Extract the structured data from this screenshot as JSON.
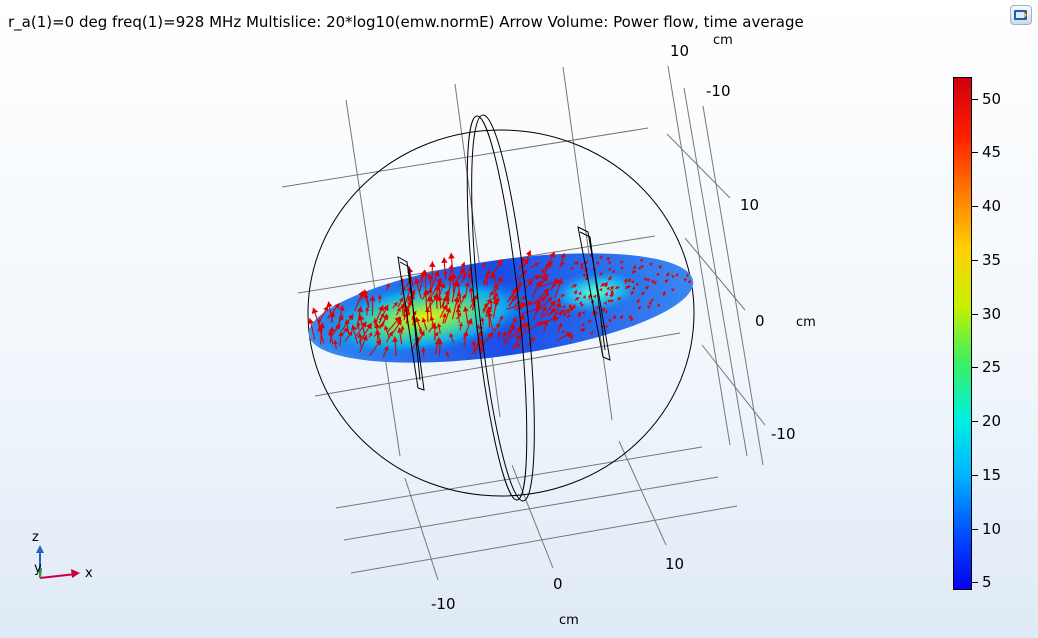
{
  "plot": {
    "title": "r_a(1)=0 deg freq(1)=928 MHz   Multislice: 20*log10(emw.normE)  Arrow Volume: Power flow, time average",
    "toolbar_icon": "display-icon"
  },
  "axes": {
    "z_ticks": [
      "10",
      "-10"
    ],
    "z_unit": "cm",
    "y_ticks": [
      "10",
      "0",
      "-10"
    ],
    "y_unit": "cm",
    "x_ticks": [
      "10",
      "0",
      "-10"
    ],
    "x_unit": "cm"
  },
  "triad": {
    "z": "z",
    "y": "y",
    "x": "x"
  },
  "colorbar": {
    "ticks": [
      "50",
      "45",
      "40",
      "35",
      "30",
      "25",
      "20",
      "15",
      "10",
      "5"
    ],
    "range": [
      4.3,
      52
    ],
    "colormap": "rainbow",
    "colors": [
      "#0a00f0",
      "#0050ff",
      "#00b4ff",
      "#00f0e0",
      "#3cf060",
      "#c8f000",
      "#ffd000",
      "#ff7800",
      "#ff1e00",
      "#d00010"
    ]
  },
  "colors": {
    "arrows": "#e00000",
    "grid": "#666666",
    "geometry": "#000000",
    "x_axis": "#c8003c",
    "z_axis": "#2864b4",
    "y_axis": "#28a028"
  }
}
